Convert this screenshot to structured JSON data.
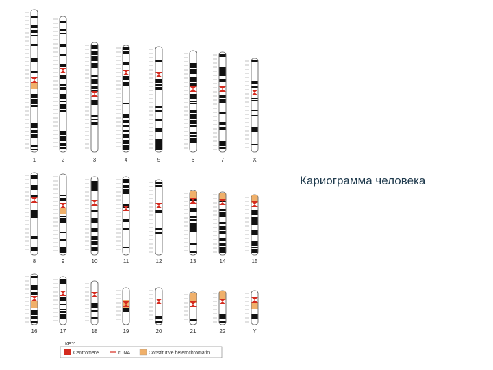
{
  "title": "Кариограмма человека",
  "colors": {
    "centromere": "#d42a1e",
    "heterochromatin": "#f0b06a",
    "band_dark": "#111111",
    "outline": "#555555"
  },
  "chromosomes": [
    {
      "label": "1",
      "row": 1,
      "sizeClass": "xl"
    },
    {
      "label": "2",
      "row": 1,
      "sizeClass": "xl"
    },
    {
      "label": "3",
      "row": 1,
      "sizeClass": "l"
    },
    {
      "label": "4",
      "row": 1,
      "sizeClass": "l"
    },
    {
      "label": "5",
      "row": 1,
      "sizeClass": "l"
    },
    {
      "label": "6",
      "row": 1,
      "sizeClass": "l"
    },
    {
      "label": "7",
      "row": 1,
      "sizeClass": "m"
    },
    {
      "label": "X",
      "row": 1,
      "sizeClass": "m"
    },
    {
      "label": "8",
      "row": 2,
      "sizeClass": "m"
    },
    {
      "label": "9",
      "row": 2,
      "sizeClass": "m"
    },
    {
      "label": "10",
      "row": 2,
      "sizeClass": "m"
    },
    {
      "label": "11",
      "row": 2,
      "sizeClass": "m"
    },
    {
      "label": "12",
      "row": 2,
      "sizeClass": "m"
    },
    {
      "label": "13",
      "row": 2,
      "sizeClass": "s"
    },
    {
      "label": "14",
      "row": 2,
      "sizeClass": "s"
    },
    {
      "label": "15",
      "row": 2,
      "sizeClass": "s"
    },
    {
      "label": "16",
      "row": 3,
      "sizeClass": "s"
    },
    {
      "label": "17",
      "row": 3,
      "sizeClass": "s"
    },
    {
      "label": "18",
      "row": 3,
      "sizeClass": "s"
    },
    {
      "label": "19",
      "row": 3,
      "sizeClass": "xs"
    },
    {
      "label": "20",
      "row": 3,
      "sizeClass": "xs"
    },
    {
      "label": "21",
      "row": 3,
      "sizeClass": "xs"
    },
    {
      "label": "22",
      "row": 3,
      "sizeClass": "xs"
    },
    {
      "label": "Y",
      "row": 3,
      "sizeClass": "s"
    }
  ],
  "legend": {
    "heading": "KEY",
    "items": [
      {
        "label": "Centromere",
        "swatch": "centromere"
      },
      {
        "label": "rDNA",
        "swatch": "rdna"
      },
      {
        "label": "Constitutive heterochromatin",
        "swatch": "heterochromatin"
      }
    ]
  }
}
